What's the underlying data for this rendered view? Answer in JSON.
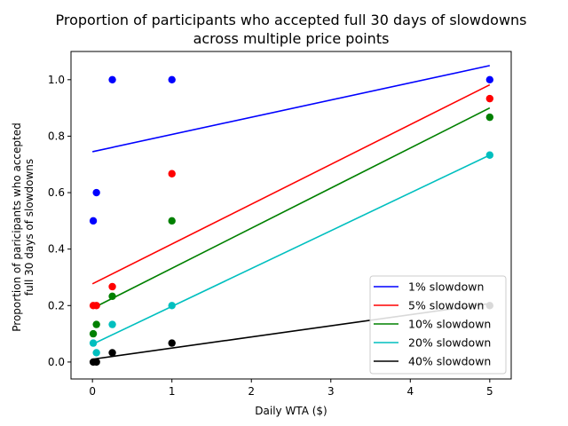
{
  "chart_data": {
    "type": "scatter",
    "title_lines": [
      "Proportion of participants who accepted full 30 days of slowdowns",
      "across multiple price points"
    ],
    "xlabel": "Daily WTA ($)",
    "ylabel_lines": [
      "Proportion of paricipants who accepted",
      "full 30 days of slowdowns"
    ],
    "xlim": [
      -0.27,
      5.27
    ],
    "ylim": [
      -0.06,
      1.1
    ],
    "xticks": [
      0,
      1,
      2,
      3,
      4,
      5
    ],
    "yticks": [
      0.0,
      0.2,
      0.4,
      0.6,
      0.8,
      1.0
    ],
    "legend_position": "lower-right",
    "series": [
      {
        "name": "1% slowdown",
        "color": "#0000ff",
        "points": [
          [
            0.01,
            0.5
          ],
          [
            0.05,
            0.6
          ],
          [
            0.25,
            1.0
          ],
          [
            1.0,
            1.0
          ],
          [
            5.0,
            1.0
          ]
        ],
        "fit_line": [
          [
            0.0,
            0.745
          ],
          [
            5.0,
            1.05
          ]
        ]
      },
      {
        "name": "5% slowdown",
        "color": "#ff0000",
        "points": [
          [
            0.01,
            0.2
          ],
          [
            0.05,
            0.2
          ],
          [
            0.25,
            0.267
          ],
          [
            1.0,
            0.667
          ],
          [
            5.0,
            0.933
          ]
        ],
        "fit_line": [
          [
            0.0,
            0.277
          ],
          [
            5.0,
            0.982
          ]
        ]
      },
      {
        "name": "10% slowdown",
        "color": "#008000",
        "points": [
          [
            0.01,
            0.1
          ],
          [
            0.05,
            0.133
          ],
          [
            0.25,
            0.233
          ],
          [
            1.0,
            0.5
          ],
          [
            5.0,
            0.867
          ]
        ],
        "fit_line": [
          [
            0.0,
            0.19
          ],
          [
            5.0,
            0.9
          ]
        ]
      },
      {
        "name": "20% slowdown",
        "color": "#00bfbf",
        "points": [
          [
            0.01,
            0.067
          ],
          [
            0.05,
            0.033
          ],
          [
            0.25,
            0.133
          ],
          [
            1.0,
            0.2
          ],
          [
            5.0,
            0.733
          ]
        ],
        "fit_line": [
          [
            0.0,
            0.063
          ],
          [
            5.0,
            0.733
          ]
        ]
      },
      {
        "name": "40% slowdown",
        "color": "#000000",
        "points": [
          [
            0.01,
            0.0
          ],
          [
            0.05,
            0.0
          ],
          [
            0.25,
            0.033
          ],
          [
            1.0,
            0.067
          ],
          [
            5.0,
            0.2
          ]
        ],
        "fit_line": [
          [
            0.0,
            0.01
          ],
          [
            5.0,
            0.207
          ]
        ]
      }
    ]
  }
}
